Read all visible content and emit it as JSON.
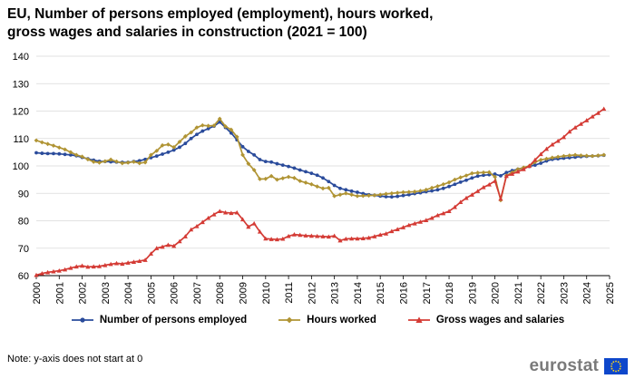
{
  "title_line1": "EU, Number of persons employed (employment), hours worked,",
  "title_line2": "gross wages and salaries in construction (2021 = 100)",
  "note": "Note: y-axis does not start at 0",
  "brand": "eurostat",
  "chart_data": {
    "type": "line",
    "title": "EU, Number of persons employed (employment), hours worked, gross wages and salaries in construction (2021 = 100)",
    "xlabel": "",
    "ylabel": "",
    "xlim": [
      2000,
      2025
    ],
    "ylim": [
      60,
      140
    ],
    "yticks": [
      60,
      70,
      80,
      90,
      100,
      110,
      120,
      130,
      140
    ],
    "xticks": [
      "2000",
      "2001",
      "2002",
      "2003",
      "2004",
      "2005",
      "2006",
      "2007",
      "2008",
      "2009",
      "2010",
      "2011",
      "2012",
      "2013",
      "2014",
      "2015",
      "2016",
      "2017",
      "2018",
      "2019",
      "2020",
      "2021",
      "2022",
      "2023",
      "2024",
      "2025"
    ],
    "grid": "horizontal",
    "legend": "bottom",
    "x": [
      2000.0,
      2000.25,
      2000.5,
      2000.75,
      2001.0,
      2001.25,
      2001.5,
      2001.75,
      2002.0,
      2002.25,
      2002.5,
      2002.75,
      2003.0,
      2003.25,
      2003.5,
      2003.75,
      2004.0,
      2004.25,
      2004.5,
      2004.75,
      2005.0,
      2005.25,
      2005.5,
      2005.75,
      2006.0,
      2006.25,
      2006.5,
      2006.75,
      2007.0,
      2007.25,
      2007.5,
      2007.75,
      2008.0,
      2008.25,
      2008.5,
      2008.75,
      2009.0,
      2009.25,
      2009.5,
      2009.75,
      2010.0,
      2010.25,
      2010.5,
      2010.75,
      2011.0,
      2011.25,
      2011.5,
      2011.75,
      2012.0,
      2012.25,
      2012.5,
      2012.75,
      2013.0,
      2013.25,
      2013.5,
      2013.75,
      2014.0,
      2014.25,
      2014.5,
      2014.75,
      2015.0,
      2015.25,
      2015.5,
      2015.75,
      2016.0,
      2016.25,
      2016.5,
      2016.75,
      2017.0,
      2017.25,
      2017.5,
      2017.75,
      2018.0,
      2018.25,
      2018.5,
      2018.75,
      2019.0,
      2019.25,
      2019.5,
      2019.75,
      2020.0,
      2020.25,
      2020.5,
      2020.75,
      2021.0,
      2021.25,
      2021.5,
      2021.75,
      2022.0,
      2022.25,
      2022.5,
      2022.75,
      2023.0,
      2023.25,
      2023.5,
      2023.75,
      2024.0,
      2024.25,
      2024.5,
      2024.75
    ],
    "series": [
      {
        "name": "Number of persons employed",
        "color": "#2a4b9b",
        "marker": "circle",
        "values": [
          104.8,
          104.6,
          104.5,
          104.5,
          104.4,
          104.2,
          104.0,
          103.7,
          103.1,
          102.6,
          102.1,
          101.7,
          101.6,
          101.5,
          101.4,
          101.3,
          101.3,
          101.6,
          101.9,
          102.4,
          103.0,
          103.6,
          104.3,
          105.0,
          105.8,
          106.8,
          108.2,
          110.0,
          111.5,
          112.7,
          113.6,
          114.5,
          116.0,
          114.0,
          112.0,
          109.5,
          107.0,
          105.3,
          104.0,
          102.3,
          101.6,
          101.4,
          100.8,
          100.3,
          99.8,
          99.2,
          98.5,
          97.9,
          97.3,
          96.6,
          95.6,
          94.3,
          92.9,
          91.8,
          91.3,
          90.8,
          90.4,
          89.9,
          89.5,
          89.3,
          89.0,
          88.8,
          88.7,
          88.9,
          89.2,
          89.5,
          89.9,
          90.2,
          90.6,
          90.9,
          91.3,
          91.8,
          92.5,
          93.3,
          94.1,
          94.8,
          95.6,
          96.3,
          96.6,
          96.8,
          97.0,
          96.4,
          97.6,
          98.3,
          98.8,
          99.3,
          99.8,
          100.3,
          101.0,
          101.8,
          102.4,
          102.6,
          102.8,
          103.0,
          103.2,
          103.4,
          103.5,
          103.6,
          103.7,
          103.9
        ]
      },
      {
        "name": "Hours worked",
        "color": "#b09434",
        "marker": "diamond",
        "values": [
          109.3,
          108.6,
          108.0,
          107.4,
          106.7,
          106.0,
          105.0,
          104.0,
          103.4,
          102.4,
          101.5,
          101.2,
          101.7,
          102.3,
          101.6,
          101.0,
          101.2,
          101.5,
          101.0,
          101.3,
          104.0,
          105.5,
          107.5,
          107.8,
          106.8,
          108.8,
          110.8,
          112.2,
          114.0,
          114.8,
          114.6,
          114.7,
          117.2,
          114.4,
          113.2,
          110.6,
          104.0,
          100.8,
          98.5,
          95.2,
          95.3,
          96.3,
          95.0,
          95.5,
          96.0,
          95.6,
          94.5,
          93.9,
          93.3,
          92.5,
          91.8,
          92.0,
          89.0,
          89.5,
          90.0,
          89.5,
          89.0,
          89.1,
          89.2,
          89.3,
          89.5,
          89.8,
          90.0,
          90.2,
          90.4,
          90.5,
          90.6,
          90.9,
          91.3,
          92.0,
          92.6,
          93.3,
          94.0,
          95.0,
          95.8,
          96.5,
          97.3,
          97.5,
          97.6,
          97.7,
          96.0,
          87.5,
          96.5,
          97.6,
          98.8,
          99.4,
          100.0,
          101.4,
          102.2,
          102.6,
          103.0,
          103.3,
          103.6,
          103.8,
          104.0,
          103.8,
          103.7,
          103.6,
          103.8,
          104.0
        ]
      },
      {
        "name": "Gross wages and salaries",
        "color": "#d43b35",
        "marker": "triangle",
        "values": [
          60.2,
          60.8,
          61.2,
          61.5,
          61.8,
          62.2,
          62.8,
          63.3,
          63.6,
          63.2,
          63.3,
          63.4,
          63.8,
          64.2,
          64.5,
          64.3,
          64.7,
          65.0,
          65.3,
          65.7,
          68.0,
          70.0,
          70.5,
          71.2,
          70.8,
          72.5,
          74.3,
          76.8,
          78.0,
          79.5,
          81.0,
          82.3,
          83.5,
          83.0,
          82.8,
          83.0,
          80.5,
          77.8,
          79.0,
          76.0,
          73.5,
          73.3,
          73.2,
          73.4,
          74.4,
          75.0,
          74.8,
          74.6,
          74.5,
          74.4,
          74.3,
          74.2,
          74.5,
          72.8,
          73.4,
          73.5,
          73.5,
          73.6,
          73.8,
          74.3,
          74.9,
          75.3,
          76.2,
          76.9,
          77.6,
          78.4,
          79.0,
          79.6,
          80.2,
          81.0,
          82.0,
          82.7,
          83.5,
          85.0,
          86.8,
          88.3,
          89.5,
          90.8,
          92.2,
          93.2,
          94.5,
          88.0,
          96.3,
          97.1,
          97.9,
          98.8,
          100.0,
          102.2,
          104.3,
          106.2,
          107.8,
          109.1,
          110.5,
          112.5,
          114.0,
          115.3,
          116.6,
          118.0,
          119.3,
          120.8
        ]
      }
    ]
  }
}
